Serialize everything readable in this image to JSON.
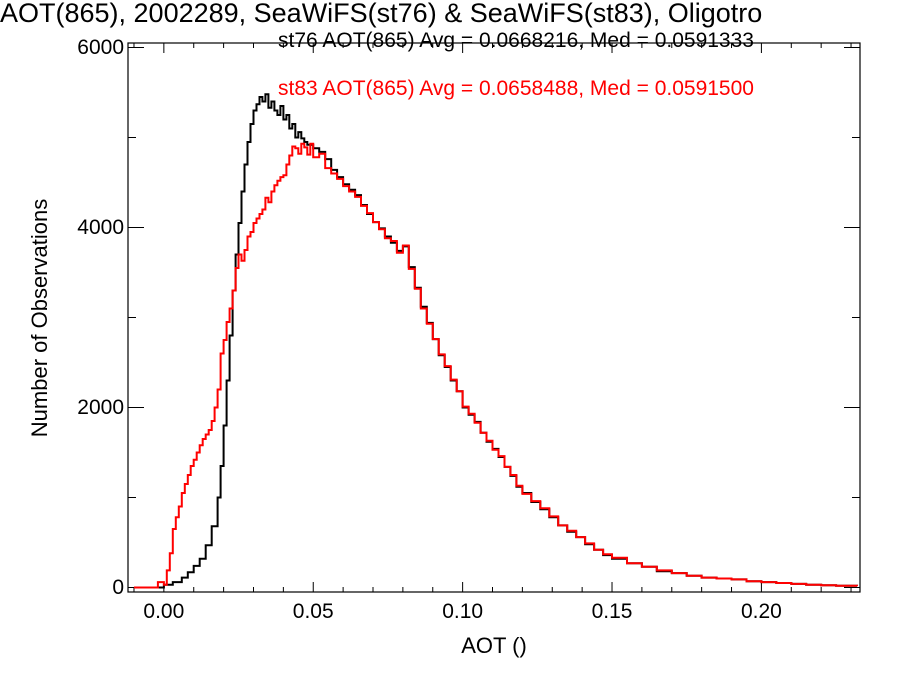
{
  "chart_data": {
    "type": "line",
    "title": "AOT(865), 2002289, SeaWiFS(st76) & SeaWiFS(st83), Oligotro",
    "xlabel": "AOT ()",
    "ylabel": "Number of Observations",
    "xlim": [
      -0.012,
      0.233
    ],
    "ylim": [
      -50,
      6050
    ],
    "x_ticks": [
      0.0,
      0.05,
      0.1,
      0.15,
      0.2
    ],
    "x_tick_labels": [
      "0.00",
      "0.05",
      "0.10",
      "0.15",
      "0.20"
    ],
    "y_ticks": [
      0,
      2000,
      4000,
      6000
    ],
    "y_tick_labels": [
      "0",
      "2000",
      "4000",
      "6000"
    ],
    "legend_position": "top-right",
    "step": true,
    "series": [
      {
        "name": "st76 AOT(865) Avg = 0.0668216, Med = 0.0591333",
        "color": "#000000",
        "points": [
          [
            -0.01,
            0
          ],
          [
            -0.003,
            0
          ],
          [
            0.0,
            30
          ],
          [
            0.003,
            60
          ],
          [
            0.006,
            110
          ],
          [
            0.008,
            170
          ],
          [
            0.01,
            240
          ],
          [
            0.012,
            320
          ],
          [
            0.014,
            470
          ],
          [
            0.016,
            680
          ],
          [
            0.018,
            1000
          ],
          [
            0.019,
            1350
          ],
          [
            0.02,
            1800
          ],
          [
            0.021,
            2300
          ],
          [
            0.022,
            2800
          ],
          [
            0.023,
            3300
          ],
          [
            0.024,
            3700
          ],
          [
            0.025,
            4050
          ],
          [
            0.026,
            4400
          ],
          [
            0.027,
            4700
          ],
          [
            0.028,
            4950
          ],
          [
            0.029,
            5150
          ],
          [
            0.03,
            5300
          ],
          [
            0.031,
            5370
          ],
          [
            0.032,
            5450
          ],
          [
            0.033,
            5400
          ],
          [
            0.034,
            5480
          ],
          [
            0.035,
            5330
          ],
          [
            0.036,
            5400
          ],
          [
            0.037,
            5300
          ],
          [
            0.038,
            5250
          ],
          [
            0.039,
            5350
          ],
          [
            0.04,
            5200
          ],
          [
            0.041,
            5250
          ],
          [
            0.042,
            5100
          ],
          [
            0.043,
            5150
          ],
          [
            0.044,
            5000
          ],
          [
            0.045,
            5060
          ],
          [
            0.046,
            4990
          ],
          [
            0.047,
            4950
          ],
          [
            0.048,
            4920
          ],
          [
            0.05,
            4880
          ],
          [
            0.052,
            4840
          ],
          [
            0.054,
            4760
          ],
          [
            0.056,
            4640
          ],
          [
            0.058,
            4560
          ],
          [
            0.06,
            4480
          ],
          [
            0.062,
            4420
          ],
          [
            0.064,
            4360
          ],
          [
            0.066,
            4250
          ],
          [
            0.068,
            4150
          ],
          [
            0.07,
            4060
          ],
          [
            0.072,
            3990
          ],
          [
            0.074,
            3900
          ],
          [
            0.076,
            3830
          ],
          [
            0.078,
            3740
          ],
          [
            0.08,
            3790
          ],
          [
            0.082,
            3560
          ],
          [
            0.084,
            3330
          ],
          [
            0.086,
            3120
          ],
          [
            0.088,
            2940
          ],
          [
            0.09,
            2760
          ],
          [
            0.092,
            2580
          ],
          [
            0.094,
            2450
          ],
          [
            0.096,
            2300
          ],
          [
            0.098,
            2180
          ],
          [
            0.1,
            2000
          ],
          [
            0.102,
            1920
          ],
          [
            0.104,
            1840
          ],
          [
            0.106,
            1720
          ],
          [
            0.108,
            1620
          ],
          [
            0.11,
            1540
          ],
          [
            0.112,
            1450
          ],
          [
            0.114,
            1340
          ],
          [
            0.116,
            1240
          ],
          [
            0.118,
            1120
          ],
          [
            0.12,
            1050
          ],
          [
            0.123,
            950
          ],
          [
            0.126,
            870
          ],
          [
            0.129,
            780
          ],
          [
            0.132,
            690
          ],
          [
            0.135,
            620
          ],
          [
            0.138,
            560
          ],
          [
            0.141,
            480
          ],
          [
            0.144,
            420
          ],
          [
            0.147,
            360
          ],
          [
            0.15,
            320
          ],
          [
            0.155,
            270
          ],
          [
            0.16,
            230
          ],
          [
            0.165,
            180
          ],
          [
            0.17,
            160
          ],
          [
            0.175,
            130
          ],
          [
            0.18,
            110
          ],
          [
            0.185,
            100
          ],
          [
            0.19,
            90
          ],
          [
            0.195,
            70
          ],
          [
            0.2,
            60
          ],
          [
            0.205,
            50
          ],
          [
            0.21,
            40
          ],
          [
            0.215,
            30
          ],
          [
            0.22,
            25
          ],
          [
            0.225,
            20
          ],
          [
            0.232,
            15
          ]
        ]
      },
      {
        "name": "st83 AOT(865) Avg = 0.0658488, Med = 0.0591500",
        "color": "#ff0000",
        "points": [
          [
            -0.01,
            0
          ],
          [
            -0.004,
            0
          ],
          [
            -0.002,
            60
          ],
          [
            0.0,
            30
          ],
          [
            0.001,
            190
          ],
          [
            0.002,
            380
          ],
          [
            0.003,
            650
          ],
          [
            0.004,
            780
          ],
          [
            0.005,
            900
          ],
          [
            0.006,
            1050
          ],
          [
            0.007,
            1150
          ],
          [
            0.008,
            1250
          ],
          [
            0.009,
            1350
          ],
          [
            0.01,
            1420
          ],
          [
            0.011,
            1500
          ],
          [
            0.012,
            1580
          ],
          [
            0.013,
            1650
          ],
          [
            0.014,
            1700
          ],
          [
            0.015,
            1750
          ],
          [
            0.016,
            1850
          ],
          [
            0.017,
            2000
          ],
          [
            0.018,
            2200
          ],
          [
            0.019,
            2600
          ],
          [
            0.02,
            2750
          ],
          [
            0.021,
            2950
          ],
          [
            0.022,
            3100
          ],
          [
            0.023,
            3300
          ],
          [
            0.024,
            3550
          ],
          [
            0.025,
            3700
          ],
          [
            0.026,
            3630
          ],
          [
            0.027,
            3750
          ],
          [
            0.028,
            3900
          ],
          [
            0.029,
            3950
          ],
          [
            0.03,
            4050
          ],
          [
            0.031,
            4100
          ],
          [
            0.032,
            4150
          ],
          [
            0.033,
            4200
          ],
          [
            0.034,
            4330
          ],
          [
            0.035,
            4280
          ],
          [
            0.036,
            4400
          ],
          [
            0.037,
            4470
          ],
          [
            0.038,
            4520
          ],
          [
            0.039,
            4560
          ],
          [
            0.04,
            4580
          ],
          [
            0.041,
            4700
          ],
          [
            0.042,
            4800
          ],
          [
            0.043,
            4900
          ],
          [
            0.044,
            4880
          ],
          [
            0.045,
            4820
          ],
          [
            0.046,
            4930
          ],
          [
            0.047,
            4890
          ],
          [
            0.048,
            4810
          ],
          [
            0.049,
            4930
          ],
          [
            0.05,
            4780
          ],
          [
            0.052,
            4820
          ],
          [
            0.054,
            4660
          ],
          [
            0.056,
            4600
          ],
          [
            0.058,
            4540
          ],
          [
            0.06,
            4460
          ],
          [
            0.062,
            4400
          ],
          [
            0.064,
            4340
          ],
          [
            0.066,
            4240
          ],
          [
            0.068,
            4160
          ],
          [
            0.07,
            4060
          ],
          [
            0.072,
            3980
          ],
          [
            0.074,
            3880
          ],
          [
            0.076,
            3850
          ],
          [
            0.078,
            3720
          ],
          [
            0.08,
            3800
          ],
          [
            0.082,
            3540
          ],
          [
            0.084,
            3320
          ],
          [
            0.086,
            3100
          ],
          [
            0.088,
            2930
          ],
          [
            0.09,
            2760
          ],
          [
            0.092,
            2590
          ],
          [
            0.094,
            2460
          ],
          [
            0.096,
            2310
          ],
          [
            0.098,
            2180
          ],
          [
            0.1,
            2010
          ],
          [
            0.102,
            1930
          ],
          [
            0.104,
            1830
          ],
          [
            0.106,
            1720
          ],
          [
            0.108,
            1630
          ],
          [
            0.11,
            1530
          ],
          [
            0.112,
            1460
          ],
          [
            0.114,
            1340
          ],
          [
            0.116,
            1250
          ],
          [
            0.118,
            1130
          ],
          [
            0.12,
            1040
          ],
          [
            0.123,
            960
          ],
          [
            0.126,
            880
          ],
          [
            0.129,
            790
          ],
          [
            0.132,
            690
          ],
          [
            0.135,
            630
          ],
          [
            0.138,
            560
          ],
          [
            0.141,
            490
          ],
          [
            0.144,
            420
          ],
          [
            0.147,
            370
          ],
          [
            0.15,
            330
          ],
          [
            0.155,
            270
          ],
          [
            0.16,
            230
          ],
          [
            0.165,
            190
          ],
          [
            0.17,
            160
          ],
          [
            0.175,
            130
          ],
          [
            0.18,
            110
          ],
          [
            0.185,
            100
          ],
          [
            0.19,
            90
          ],
          [
            0.195,
            70
          ],
          [
            0.2,
            60
          ],
          [
            0.205,
            50
          ],
          [
            0.21,
            40
          ],
          [
            0.215,
            30
          ],
          [
            0.22,
            25
          ],
          [
            0.225,
            20
          ],
          [
            0.232,
            15
          ]
        ]
      }
    ]
  }
}
